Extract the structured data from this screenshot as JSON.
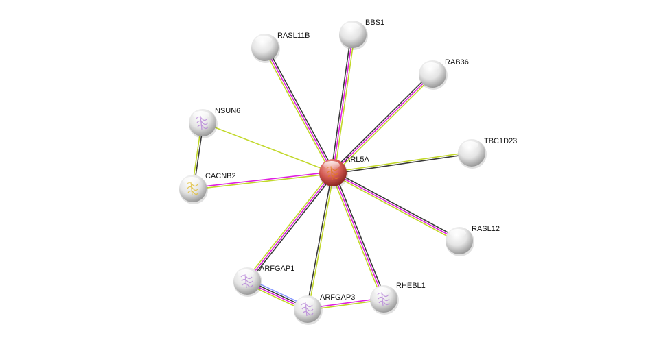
{
  "network": {
    "query_node": "ARL5A",
    "nodes": [
      {
        "id": "ARL5A",
        "query": true,
        "structure": true
      },
      {
        "id": "RASL11B",
        "query": false,
        "structure": false
      },
      {
        "id": "BBS1",
        "query": false,
        "structure": false
      },
      {
        "id": "RAB36",
        "query": false,
        "structure": false
      },
      {
        "id": "TBC1D23",
        "query": false,
        "structure": false
      },
      {
        "id": "RASL12",
        "query": false,
        "structure": false
      },
      {
        "id": "RHEBL1",
        "query": false,
        "structure": true
      },
      {
        "id": "ARFGAP3",
        "query": false,
        "structure": true
      },
      {
        "id": "ARFGAP1",
        "query": false,
        "structure": true
      },
      {
        "id": "CACNB2",
        "query": false,
        "structure": true
      },
      {
        "id": "NSUN6",
        "query": false,
        "structure": true
      }
    ],
    "edges": [
      {
        "from": "ARL5A",
        "to": "RASL11B",
        "evidence": [
          "textmining",
          "experiments",
          "coexpression"
        ]
      },
      {
        "from": "ARL5A",
        "to": "BBS1",
        "evidence": [
          "coexpression",
          "experiments",
          "textmining"
        ]
      },
      {
        "from": "ARL5A",
        "to": "RAB36",
        "evidence": [
          "coexpression",
          "experiments",
          "textmining"
        ]
      },
      {
        "from": "ARL5A",
        "to": "TBC1D23",
        "evidence": [
          "textmining",
          "coexpression"
        ]
      },
      {
        "from": "ARL5A",
        "to": "RASL12",
        "evidence": [
          "coexpression",
          "experiments",
          "textmining"
        ]
      },
      {
        "from": "ARL5A",
        "to": "RHEBL1",
        "evidence": [
          "coexpression",
          "experiments",
          "textmining"
        ]
      },
      {
        "from": "ARL5A",
        "to": "ARFGAP3",
        "evidence": [
          "textmining",
          "coexpression"
        ]
      },
      {
        "from": "ARL5A",
        "to": "ARFGAP1",
        "evidence": [
          "coexpression",
          "experiments",
          "textmining"
        ]
      },
      {
        "from": "ARL5A",
        "to": "CACNB2",
        "evidence": [
          "textmining",
          "experiments"
        ]
      },
      {
        "from": "ARL5A",
        "to": "NSUN6",
        "evidence": [
          "textmining"
        ]
      },
      {
        "from": "NSUN6",
        "to": "CACNB2",
        "evidence": [
          "coexpression",
          "textmining"
        ]
      },
      {
        "from": "ARFGAP1",
        "to": "ARFGAP3",
        "evidence": [
          "databases",
          "coexpression",
          "experiments",
          "textmining"
        ]
      },
      {
        "from": "ARFGAP3",
        "to": "RHEBL1",
        "evidence": [
          "experiments",
          "textmining"
        ]
      }
    ],
    "evidence_colors": {
      "textmining": "#c2d82a",
      "experiments": "#e020e0",
      "coexpression": "#3a3a3a",
      "databases": "#8c9cff"
    },
    "node_colors": {
      "query": "#d9534f",
      "other": "#e6e6e6",
      "structure_query": "#e07820",
      "structure_other": "#b98ad8",
      "structure_cacnb2": "#e0c040"
    }
  }
}
